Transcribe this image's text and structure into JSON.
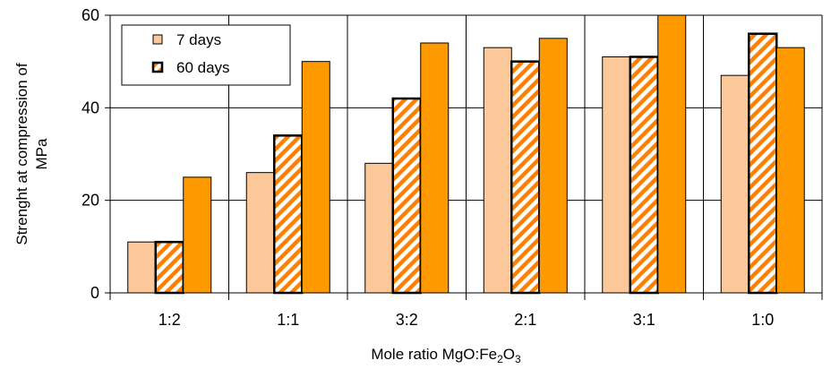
{
  "chart_data": {
    "type": "bar",
    "categories": [
      "1:2",
      "1:1",
      "3:2",
      "2:1",
      "3:1",
      "1:0"
    ],
    "series": [
      {
        "name": "7 days",
        "values": [
          11,
          26,
          28,
          53,
          51,
          47
        ],
        "style": "solid",
        "color": "#FCC89A"
      },
      {
        "name": "60 days",
        "values": [
          11,
          34,
          42,
          50,
          51,
          56
        ],
        "style": "hatched",
        "color": "#FF7F00"
      },
      {
        "name": "",
        "values": [
          25,
          50,
          54,
          55,
          60,
          53
        ],
        "style": "solid",
        "color": "#FF9900"
      }
    ],
    "ylabel_line1": "Strenght at compression of",
    "ylabel_line2": "MPa",
    "xlabel_main": "Mole ratio  MgO:Fe",
    "xlabel_sub1": "2",
    "xlabel_mid": "O",
    "xlabel_sub2": "3",
    "ylim": [
      0,
      60
    ],
    "yticks": [
      0,
      20,
      40,
      60
    ],
    "grid": true,
    "legend_position": "top-left"
  }
}
